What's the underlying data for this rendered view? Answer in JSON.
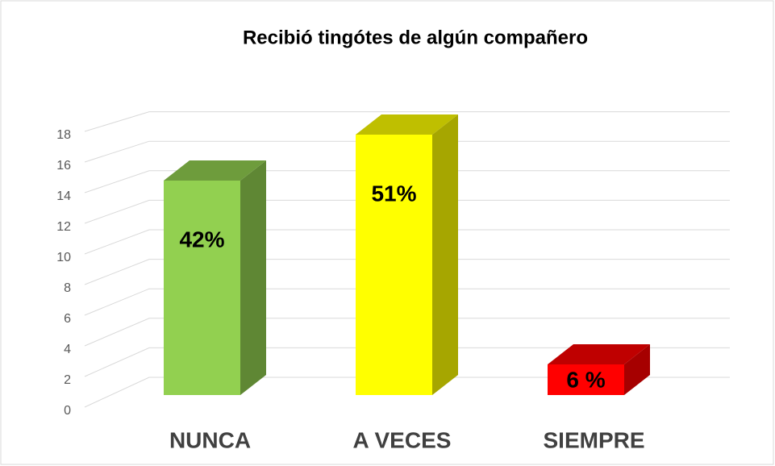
{
  "chart_data": {
    "type": "bar3d",
    "title": "Recibió tingótes de algún compañero",
    "categories": [
      "NUNCA",
      "A VECES",
      "SIEMPRE"
    ],
    "values": [
      14,
      17,
      2
    ],
    "annotations": [
      "42%",
      "51%",
      "6 %"
    ],
    "colors": [
      "#92d050",
      "#ffff00",
      "#ff0000"
    ],
    "ylim": [
      0,
      20
    ],
    "yticks": [
      0,
      2,
      4,
      6,
      8,
      10,
      12,
      14,
      16,
      18
    ],
    "grid": true
  }
}
